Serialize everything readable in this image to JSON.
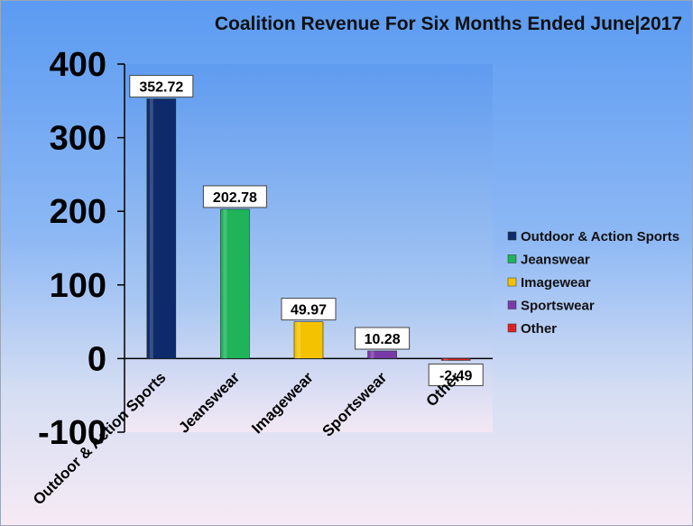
{
  "chart_data": {
    "type": "bar",
    "title": "Coalition Revenue For Six Months Ended June|2017",
    "xlabel": "",
    "ylabel": "",
    "categories": [
      "Outdoor & Action Sports",
      "Jeanswear",
      "Imagewear",
      "Sportswear",
      "Other"
    ],
    "values": [
      352.72,
      202.78,
      49.97,
      10.28,
      -2.49
    ],
    "value_labels": [
      "352.72",
      "202.78",
      "49.97",
      "10.28",
      "-2.49"
    ],
    "colors": [
      "#0e2a6b",
      "#1fb35a",
      "#f5c200",
      "#7a3aa8",
      "#e02020"
    ],
    "ylim": [
      -100,
      400
    ],
    "yticks": [
      400,
      300,
      200,
      100,
      0,
      -100
    ],
    "ytick_labels": [
      "400",
      "300",
      "200",
      "100",
      "0",
      "-100"
    ],
    "grid": false,
    "legend": {
      "position": "right",
      "entries": [
        "Outdoor & Action Sports",
        "Jeanswear",
        "Imagewear",
        "Sportswear",
        "Other"
      ]
    }
  }
}
